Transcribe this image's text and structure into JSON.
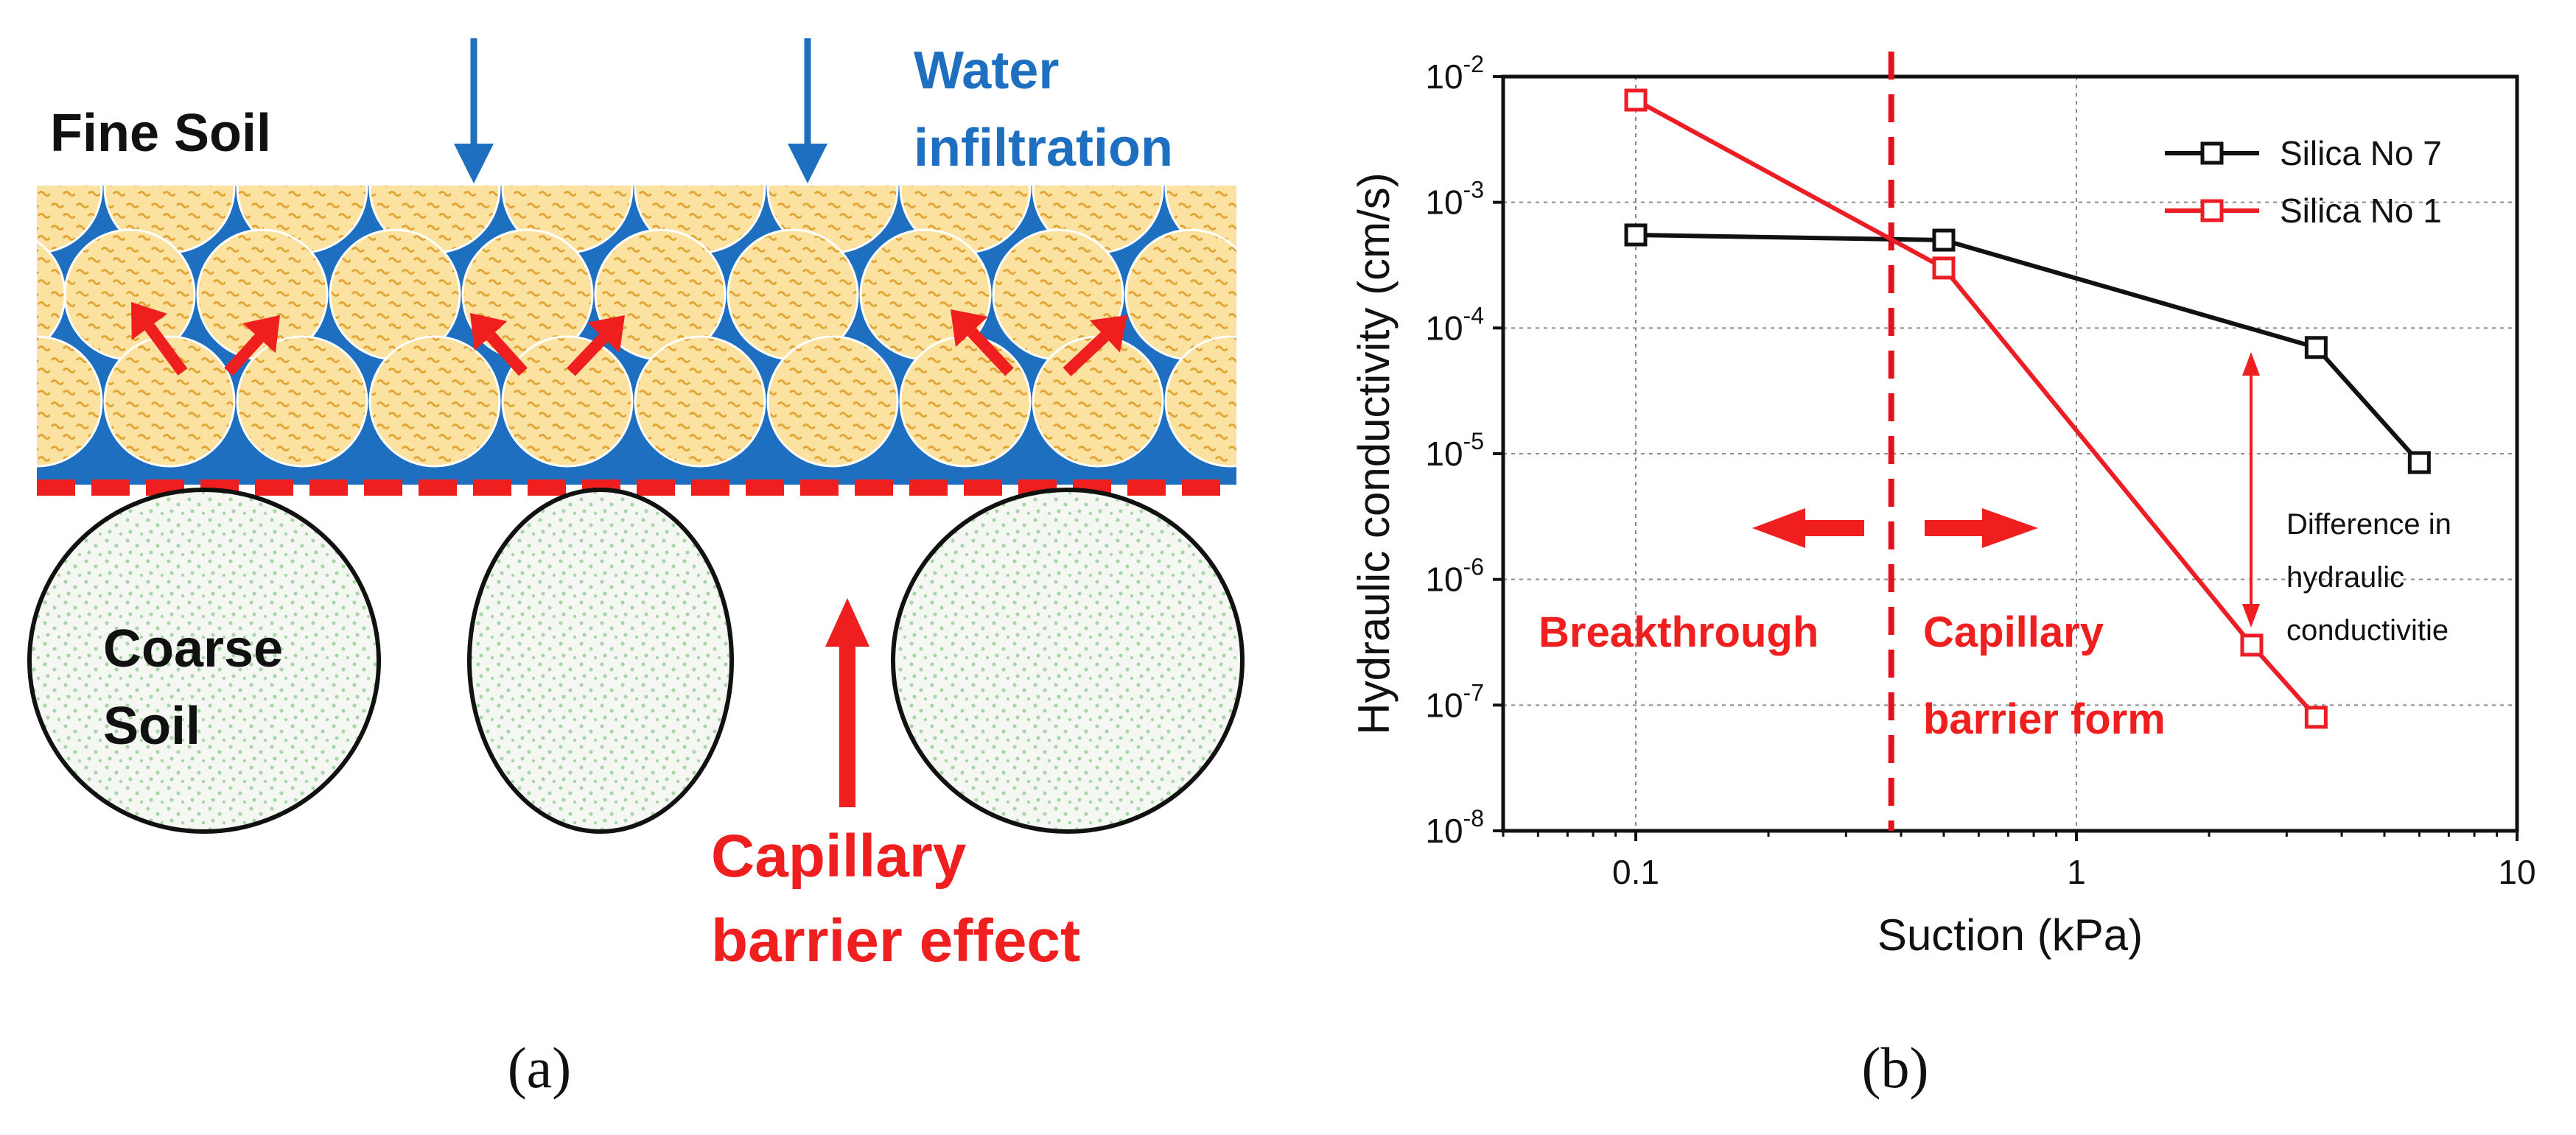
{
  "panel_a": {
    "caption": "(a)",
    "fine_soil_label": "Fine Soil",
    "water_label_line1": "Water",
    "water_label_line2": "infiltration",
    "coarse_soil_line1": "Coarse",
    "coarse_soil_line2": "Soil",
    "capillary_line1": "Capillary",
    "capillary_line2": "barrier effect",
    "colors": {
      "water": "#1f6fc0",
      "fine_grain": "#fbe2a1",
      "fine_grain_dots": "#e2a636",
      "coarse_grain": "#f4f7f2",
      "coarse_dots": "#a8d6a6",
      "red": "#f01f1f",
      "blue_text": "#1f6fc0"
    }
  },
  "panel_b": {
    "caption": "(b)",
    "annotations": {
      "breakthrough": "Breakthrough",
      "capillary_line1": "Capillary",
      "capillary_line2": "barrier form",
      "difference_line1": "Difference in",
      "difference_line2": "hydraulic",
      "difference_line3": "conductivitie"
    }
  },
  "chart_data": {
    "type": "line",
    "title": "",
    "xlabel": "Suction (kPa)",
    "ylabel": "Hydraulic conductivity (cm/s)",
    "xscale": "log",
    "yscale": "log",
    "xlim": [
      0.05,
      10
    ],
    "ylim": [
      1e-08,
      0.01
    ],
    "x_ticks": [
      0.1,
      1,
      10
    ],
    "x_tick_labels": [
      "0.1",
      "1",
      "10"
    ],
    "y_tick_exponents": [
      -2,
      -3,
      -4,
      -5,
      -6,
      -7,
      -8
    ],
    "y_tick_base": "10",
    "grid": true,
    "legend_position": "top-right",
    "breakthrough_suction": 0.38,
    "series": [
      {
        "name": "Silica No 7",
        "color": "#111111",
        "x": [
          0.1,
          0.5,
          3.5,
          6.0
        ],
        "y": [
          0.00055,
          0.0005,
          7e-05,
          8.5e-06
        ]
      },
      {
        "name": "Silica No 1",
        "color": "#ec1d24",
        "x": [
          0.1,
          0.5,
          2.5,
          3.5
        ],
        "y": [
          0.0065,
          0.0003,
          3e-07,
          8e-08
        ]
      }
    ]
  }
}
